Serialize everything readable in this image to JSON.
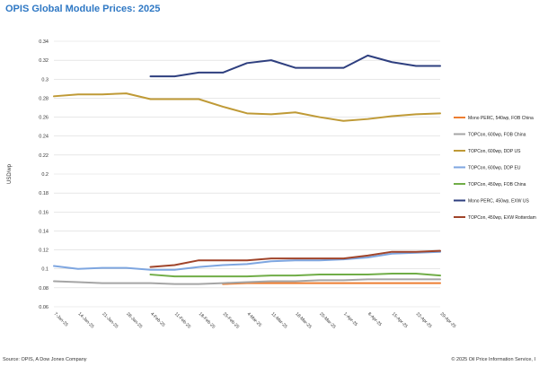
{
  "title": "OPIS Global Module Prices: 2025",
  "footer": {
    "source": "Source: OPIS, A Dow Jones Company",
    "copyright": "© 2025 Oil Price Information Service, I"
  },
  "chart_data": {
    "type": "line",
    "title": "OPIS Global Module Prices: 2025",
    "ylabel": "USD/wp",
    "xlabel": "",
    "ylim": [
      0.06,
      0.34
    ],
    "yticks": [
      0.06,
      0.08,
      0.1,
      0.12,
      0.14,
      0.16,
      0.18,
      0.2,
      0.22,
      0.24,
      0.26,
      0.28,
      0.3,
      0.32,
      0.34
    ],
    "ytick_labels": [
      "0.06",
      "0.08",
      "0.1",
      "0.12",
      "0.14",
      "0.16",
      "0.18",
      "0.2",
      "0.22",
      "0.24",
      "0.26",
      "0.28",
      "0.3",
      "0.32",
      "0.34"
    ],
    "x": [
      "7-Jan-25",
      "14-Jan-25",
      "21-Jan-25",
      "28-Jan-25",
      "4-Feb-25",
      "11-Feb-25",
      "18-Feb-25",
      "25-Feb-25",
      "4-Mar-25",
      "11-Mar-25",
      "18-Mar-25",
      "25-Mar-25",
      "1-Apr-25",
      "8-Apr-25",
      "15-Apr-25",
      "22-Apr-25",
      "29-Apr-25"
    ],
    "grid": "horizontal",
    "legend_position": "right",
    "series": [
      {
        "name": "Mono PERC, 540wp, FOB China",
        "color": "#ed7d31",
        "values": [
          null,
          null,
          null,
          null,
          null,
          null,
          null,
          0.084,
          0.085,
          0.085,
          0.085,
          0.085,
          0.085,
          0.085,
          0.085,
          0.085,
          0.085
        ]
      },
      {
        "name": "TOPCon, 600wp, FOB China",
        "color": "#a5a5a5",
        "values": [
          0.087,
          0.086,
          0.085,
          0.085,
          0.085,
          0.084,
          0.084,
          0.085,
          0.086,
          0.087,
          0.087,
          0.088,
          0.088,
          0.089,
          0.089,
          0.089,
          0.089
        ]
      },
      {
        "name": "TOPCon, 600wp, DDP US",
        "color": "#bf9a36",
        "values": [
          0.282,
          0.284,
          0.284,
          0.285,
          0.279,
          0.279,
          0.279,
          0.271,
          0.264,
          0.263,
          0.265,
          0.26,
          0.256,
          0.258,
          0.261,
          0.263,
          0.264
        ]
      },
      {
        "name": "TOPCon, 600wp, DDP EU",
        "color": "#7ea6e0",
        "values": [
          0.103,
          0.1,
          0.101,
          0.101,
          0.099,
          0.099,
          0.102,
          0.104,
          0.105,
          0.108,
          0.109,
          0.109,
          0.11,
          0.112,
          0.116,
          0.117,
          0.118
        ]
      },
      {
        "name": "TOPCon, 450wp, FOB China",
        "color": "#70ad47",
        "values": [
          null,
          null,
          null,
          null,
          0.094,
          0.092,
          0.092,
          0.092,
          0.092,
          0.093,
          0.093,
          0.094,
          0.094,
          0.094,
          0.095,
          0.095,
          0.093
        ]
      },
      {
        "name": "Mono PERC, 450wp, EXW US",
        "color": "#2e3f7f",
        "values": [
          null,
          null,
          null,
          null,
          0.303,
          0.303,
          0.307,
          0.307,
          0.317,
          0.32,
          0.312,
          0.312,
          0.312,
          0.325,
          0.318,
          0.314,
          0.314
        ]
      },
      {
        "name": "TOPCon, 450wp, EXW Rotterdam",
        "color": "#a0442a",
        "values": [
          null,
          null,
          null,
          null,
          0.102,
          0.104,
          0.109,
          0.109,
          0.109,
          0.111,
          0.111,
          0.111,
          0.111,
          0.114,
          0.118,
          0.118,
          0.119
        ]
      }
    ]
  }
}
